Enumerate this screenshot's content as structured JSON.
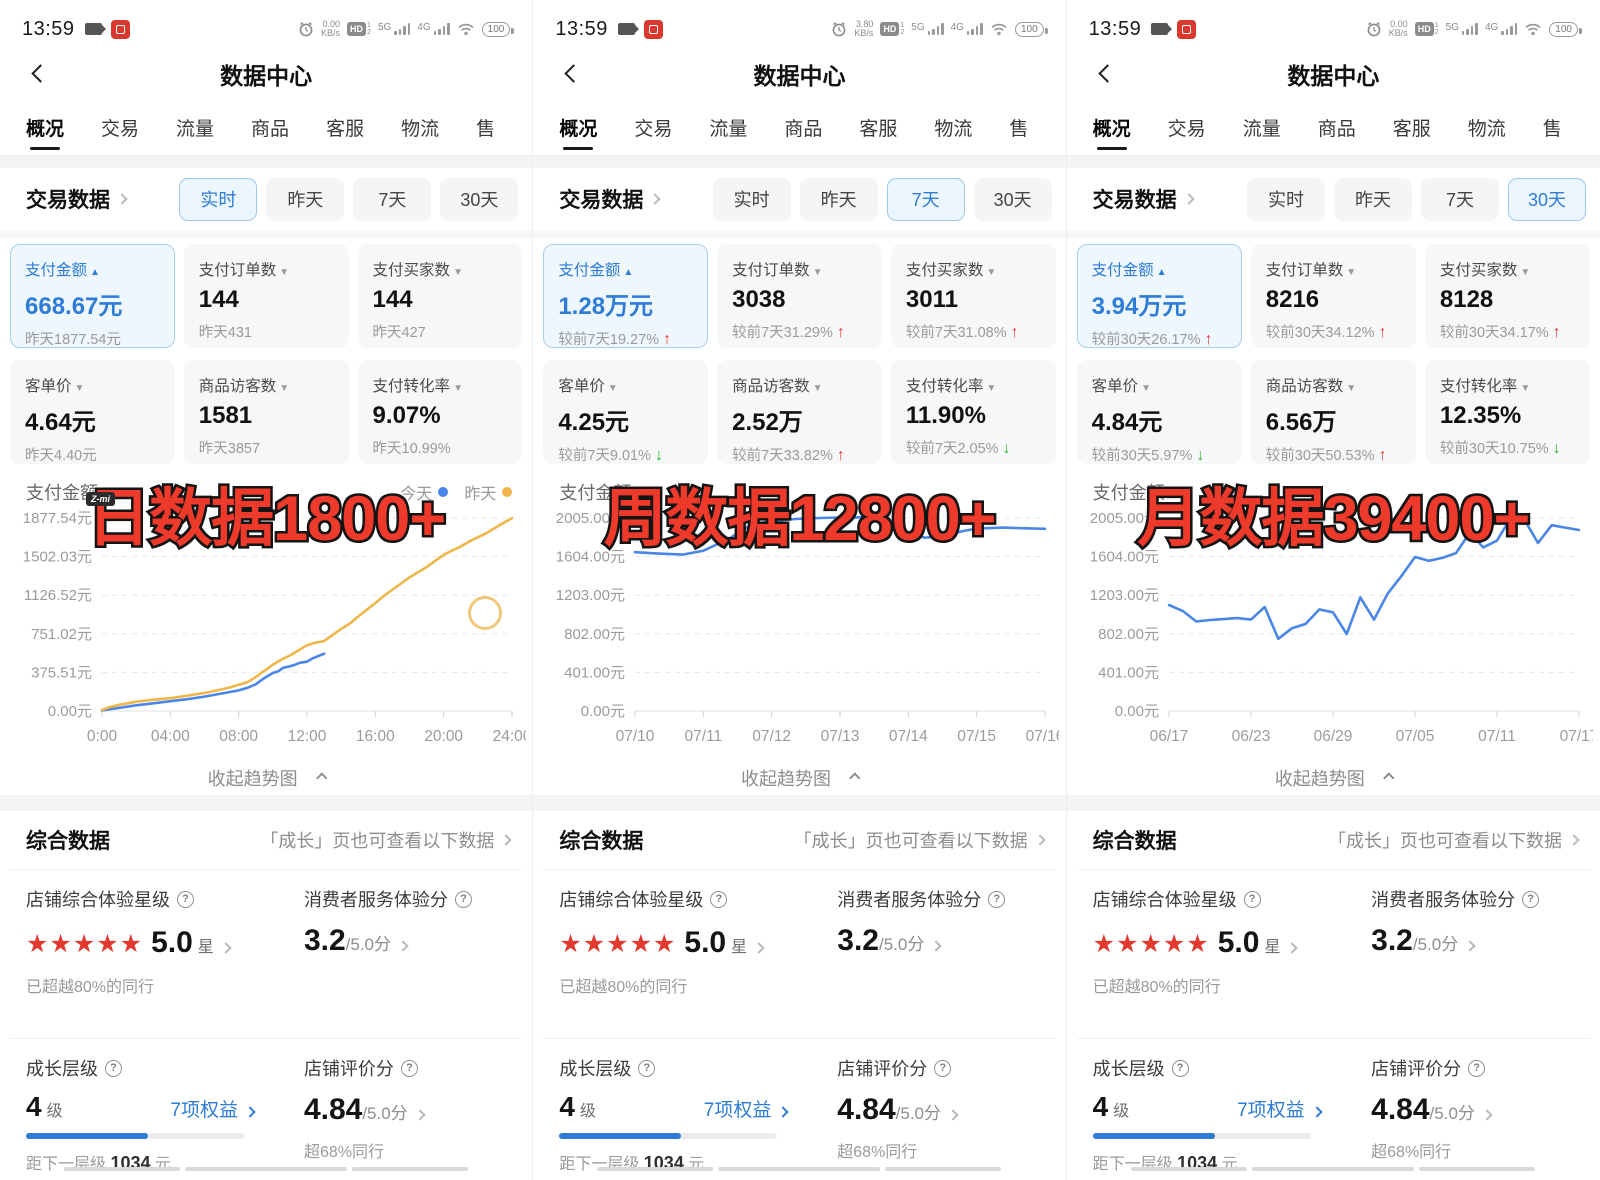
{
  "icons": {
    "question": "?",
    "caret_up": "▲",
    "caret_down": "▼",
    "arrow_up": "↑",
    "arrow_down": "↓",
    "star": "★"
  },
  "colors": {
    "accent_blue": "#2e7cd6",
    "line_blue": "#4a86e8",
    "line_yellow": "#f0b64a",
    "up_red": "#e5383a",
    "down_green": "#2db52c",
    "overlay_red": "#ee3a2b",
    "star_red": "#e23a2e"
  },
  "status_bar": {
    "time": "13:59",
    "speed_unit": "KB/s",
    "hd": "HD",
    "hd_sup": "1",
    "hd_sub": "2",
    "net1": "5G",
    "net2": "4G",
    "battery": "100"
  },
  "header": {
    "title": "数据中心"
  },
  "active_tab_index": 0,
  "tabs": [
    {
      "label": "概况"
    },
    {
      "label": "交易"
    },
    {
      "label": "流量"
    },
    {
      "label": "商品"
    },
    {
      "label": "客服"
    },
    {
      "label": "物流"
    },
    {
      "label": "售"
    }
  ],
  "trade_title": "交易数据",
  "filters": [
    {
      "label": "实时"
    },
    {
      "label": "昨天"
    },
    {
      "label": "7天"
    },
    {
      "label": "30天"
    }
  ],
  "panels": [
    {
      "speed": "0.00",
      "active_filter_index": 0,
      "cards": [
        {
          "label": "支付金额",
          "caret": "up",
          "value": "668.67元",
          "sub": "昨天1877.54元",
          "trend": "",
          "selected": true
        },
        {
          "label": "支付订单数",
          "caret": "down",
          "value": "144",
          "sub": "昨天431",
          "trend": "",
          "selected": false
        },
        {
          "label": "支付买家数",
          "caret": "down",
          "value": "144",
          "sub": "昨天427",
          "trend": "",
          "selected": false
        },
        {
          "label": "客单价",
          "caret": "down",
          "value": "4.64元",
          "sub": "昨天4.40元",
          "trend": "",
          "selected": false
        },
        {
          "label": "商品访客数",
          "caret": "down",
          "value": "1581",
          "sub": "昨天3857",
          "trend": "",
          "selected": false
        },
        {
          "label": "支付转化率",
          "caret": "down",
          "value": "9.07%",
          "sub": "昨天10.99%",
          "trend": "",
          "selected": false
        }
      ],
      "chart_title": "支付金额",
      "legend": [
        {
          "label": "今天",
          "color": "#4a86e8"
        },
        {
          "label": "昨天",
          "color": "#f0b64a"
        }
      ],
      "overlay": "日数据1800+",
      "watermark": "Z-mi",
      "ring": true,
      "collapse_label": "收起趋势图"
    },
    {
      "speed": "3.80",
      "active_filter_index": 2,
      "cards": [
        {
          "label": "支付金额",
          "caret": "up",
          "value": "1.28万元",
          "sub": "较前7天19.27%",
          "trend": "up",
          "selected": true
        },
        {
          "label": "支付订单数",
          "caret": "down",
          "value": "3038",
          "sub": "较前7天31.29%",
          "trend": "up",
          "selected": false
        },
        {
          "label": "支付买家数",
          "caret": "down",
          "value": "3011",
          "sub": "较前7天31.08%",
          "trend": "up",
          "selected": false
        },
        {
          "label": "客单价",
          "caret": "down",
          "value": "4.25元",
          "sub": "较前7天9.01%",
          "trend": "down",
          "selected": false
        },
        {
          "label": "商品访客数",
          "caret": "down",
          "value": "2.52万",
          "sub": "较前7天33.82%",
          "trend": "up",
          "selected": false
        },
        {
          "label": "支付转化率",
          "caret": "down",
          "value": "11.90%",
          "sub": "较前7天2.05%",
          "trend": "down",
          "selected": false
        }
      ],
      "chart_title": "支付金额",
      "legend": [],
      "overlay": "周数据12800+",
      "watermark": "",
      "ring": false,
      "collapse_label": "收起趋势图"
    },
    {
      "speed": "0.00",
      "active_filter_index": 3,
      "cards": [
        {
          "label": "支付金额",
          "caret": "up",
          "value": "3.94万元",
          "sub": "较前30天26.17%",
          "trend": "up",
          "selected": true
        },
        {
          "label": "支付订单数",
          "caret": "down",
          "value": "8216",
          "sub": "较前30天34.12%",
          "trend": "up",
          "selected": false
        },
        {
          "label": "支付买家数",
          "caret": "down",
          "value": "8128",
          "sub": "较前30天34.17%",
          "trend": "up",
          "selected": false
        },
        {
          "label": "客单价",
          "caret": "down",
          "value": "4.84元",
          "sub": "较前30天5.97%",
          "trend": "down",
          "selected": false
        },
        {
          "label": "商品访客数",
          "caret": "down",
          "value": "6.56万",
          "sub": "较前30天50.53%",
          "trend": "up",
          "selected": false
        },
        {
          "label": "支付转化率",
          "caret": "down",
          "value": "12.35%",
          "sub": "较前30天10.75%",
          "trend": "down",
          "selected": false
        }
      ],
      "chart_title": "支付金额",
      "legend": [],
      "overlay": "月数据39400+",
      "watermark": "",
      "ring": false,
      "collapse_label": "收起趋势图"
    }
  ],
  "chart_data": [
    {
      "type": "line",
      "title": "支付金额(今日实时 vs 昨天)",
      "ylabel": "元",
      "ymax": 1877.54,
      "xmin": 0,
      "xmax": 24,
      "yticks": [
        "1877.54元",
        "1502.03元",
        "1126.52元",
        "751.02元",
        "375.51元",
        "0.00元"
      ],
      "xticks": [
        {
          "label": "0:00",
          "pos": 0
        },
        {
          "label": "04:00",
          "pos": 4
        },
        {
          "label": "08:00",
          "pos": 8
        },
        {
          "label": "12:00",
          "pos": 12
        },
        {
          "label": "16:00",
          "pos": 16
        },
        {
          "label": "20:00",
          "pos": 20
        },
        {
          "label": "24:00",
          "pos": 24
        }
      ],
      "series": [
        {
          "name": "今天",
          "color": "#4a86e8",
          "points": [
            [
              0,
              5
            ],
            [
              1,
              30
            ],
            [
              2,
              55
            ],
            [
              3,
              75
            ],
            [
              4,
              95
            ],
            [
              5,
              115
            ],
            [
              6,
              140
            ],
            [
              7,
              170
            ],
            [
              8,
              200
            ],
            [
              8.5,
              225
            ],
            [
              9,
              260
            ],
            [
              9.5,
              320
            ],
            [
              10,
              370
            ],
            [
              10.3,
              385
            ],
            [
              10.6,
              420
            ],
            [
              11,
              435
            ],
            [
              11.3,
              450
            ],
            [
              11.6,
              470
            ],
            [
              12,
              480
            ],
            [
              12.3,
              510
            ],
            [
              12.6,
              530
            ],
            [
              13,
              557
            ]
          ]
        },
        {
          "name": "昨天",
          "color": "#f0b64a",
          "points": [
            [
              0,
              10
            ],
            [
              0.5,
              40
            ],
            [
              1,
              60
            ],
            [
              1.5,
              75
            ],
            [
              2,
              90
            ],
            [
              3,
              110
            ],
            [
              4,
              125
            ],
            [
              5,
              150
            ],
            [
              6,
              175
            ],
            [
              7,
              210
            ],
            [
              7.5,
              230
            ],
            [
              8,
              255
            ],
            [
              8.5,
              280
            ],
            [
              9,
              330
            ],
            [
              9.3,
              370
            ],
            [
              9.6,
              400
            ],
            [
              10,
              450
            ],
            [
              10.5,
              500
            ],
            [
              11,
              540
            ],
            [
              11.5,
              590
            ],
            [
              12,
              640
            ],
            [
              12.5,
              665
            ],
            [
              13,
              680
            ],
            [
              13.5,
              740
            ],
            [
              14,
              800
            ],
            [
              14.5,
              850
            ],
            [
              15,
              920
            ],
            [
              15.5,
              985
            ],
            [
              16,
              1050
            ],
            [
              16.5,
              1120
            ],
            [
              17,
              1180
            ],
            [
              17.5,
              1240
            ],
            [
              18,
              1300
            ],
            [
              18.5,
              1350
            ],
            [
              19,
              1400
            ],
            [
              19.5,
              1460
            ],
            [
              20,
              1520
            ],
            [
              20.5,
              1560
            ],
            [
              21,
              1600
            ],
            [
              21.5,
              1650
            ],
            [
              22,
              1690
            ],
            [
              22.5,
              1730
            ],
            [
              23,
              1780
            ],
            [
              23.5,
              1830
            ],
            [
              24,
              1877
            ]
          ]
        }
      ]
    },
    {
      "type": "line",
      "title": "支付金额(近7天)",
      "ylabel": "元",
      "ymax": 2005,
      "xmin": 0,
      "xmax": 6,
      "yticks": [
        "2005.00元",
        "1604.00元",
        "1203.00元",
        "802.00元",
        "401.00元",
        "0.00元"
      ],
      "xticks": [
        {
          "label": "07/10",
          "pos": 0
        },
        {
          "label": "07/11",
          "pos": 1
        },
        {
          "label": "07/12",
          "pos": 2
        },
        {
          "label": "07/13",
          "pos": 3
        },
        {
          "label": "07/14",
          "pos": 4
        },
        {
          "label": "07/15",
          "pos": 5
        },
        {
          "label": "07/16",
          "pos": 6
        }
      ],
      "series": [
        {
          "name": "支付金额",
          "color": "#4a86e8",
          "points": [
            [
              0,
              1650
            ],
            [
              0.35,
              1635
            ],
            [
              0.7,
              1625
            ],
            [
              1,
              1665
            ],
            [
              1.35,
              1780
            ],
            [
              1.7,
              1935
            ],
            [
              2,
              1975
            ],
            [
              2.35,
              1995
            ],
            [
              2.7,
              2005
            ],
            [
              3,
              2010
            ],
            [
              3.35,
              2012
            ],
            [
              3.6,
              1985
            ],
            [
              3.8,
              1930
            ],
            [
              4,
              1840
            ],
            [
              4.25,
              1800
            ],
            [
              4.5,
              1815
            ],
            [
              4.8,
              1870
            ],
            [
              5,
              1895
            ],
            [
              5.4,
              1905
            ],
            [
              5.7,
              1898
            ],
            [
              6,
              1893
            ]
          ]
        }
      ]
    },
    {
      "type": "line",
      "title": "支付金额(近30天)",
      "ylabel": "元",
      "ymax": 2005,
      "xmin": 0,
      "xmax": 30,
      "yticks": [
        "2005.00元",
        "1604.00元",
        "1203.00元",
        "802.00元",
        "401.00元",
        "0.00元"
      ],
      "xticks": [
        {
          "label": "06/17",
          "pos": 0
        },
        {
          "label": "06/23",
          "pos": 6
        },
        {
          "label": "06/29",
          "pos": 12
        },
        {
          "label": "07/05",
          "pos": 18
        },
        {
          "label": "07/11",
          "pos": 24
        },
        {
          "label": "07/17",
          "pos": 30
        }
      ],
      "series": [
        {
          "name": "支付金额",
          "color": "#4a86e8",
          "points": [
            [
              0,
              1100
            ],
            [
              1,
              1040
            ],
            [
              2,
              930
            ],
            [
              3,
              945
            ],
            [
              4,
              955
            ],
            [
              5,
              965
            ],
            [
              6,
              950
            ],
            [
              7,
              1080
            ],
            [
              8,
              750
            ],
            [
              9,
              860
            ],
            [
              10,
              905
            ],
            [
              11,
              1055
            ],
            [
              12,
              1025
            ],
            [
              13,
              800
            ],
            [
              14,
              1180
            ],
            [
              15,
              950
            ],
            [
              16,
              1220
            ],
            [
              17,
              1400
            ],
            [
              18,
              1600
            ],
            [
              19,
              1560
            ],
            [
              20,
              1590
            ],
            [
              21,
              1640
            ],
            [
              22,
              1850
            ],
            [
              23,
              1700
            ],
            [
              24,
              1770
            ],
            [
              25,
              2005
            ],
            [
              26,
              1990
            ],
            [
              27,
              1745
            ],
            [
              28,
              1930
            ],
            [
              29,
              1905
            ],
            [
              30,
              1880
            ]
          ]
        }
      ]
    }
  ],
  "summary": {
    "section_title": "综合数据",
    "section_link": "「成长」页也可查看以下数据",
    "star_block": {
      "label": "店铺综合体验星级",
      "stars": 5,
      "value": "5.0",
      "unit": "星",
      "sub": "已超越80%的同行"
    },
    "service_block": {
      "label": "消费者服务体验分",
      "value": "3.2",
      "suffix": "/5.0分"
    },
    "growth_block": {
      "label": "成长层级",
      "value": "4",
      "unit": "级",
      "link": "7项权益",
      "progress_style": "width:56%",
      "sub_prefix": "距下一层级 ",
      "sub_value": "1034",
      "sub_unit": " 元"
    },
    "rating_block": {
      "label": "店铺评价分",
      "value": "4.84",
      "suffix": "/5.0分",
      "sub": "超68%同行"
    }
  }
}
